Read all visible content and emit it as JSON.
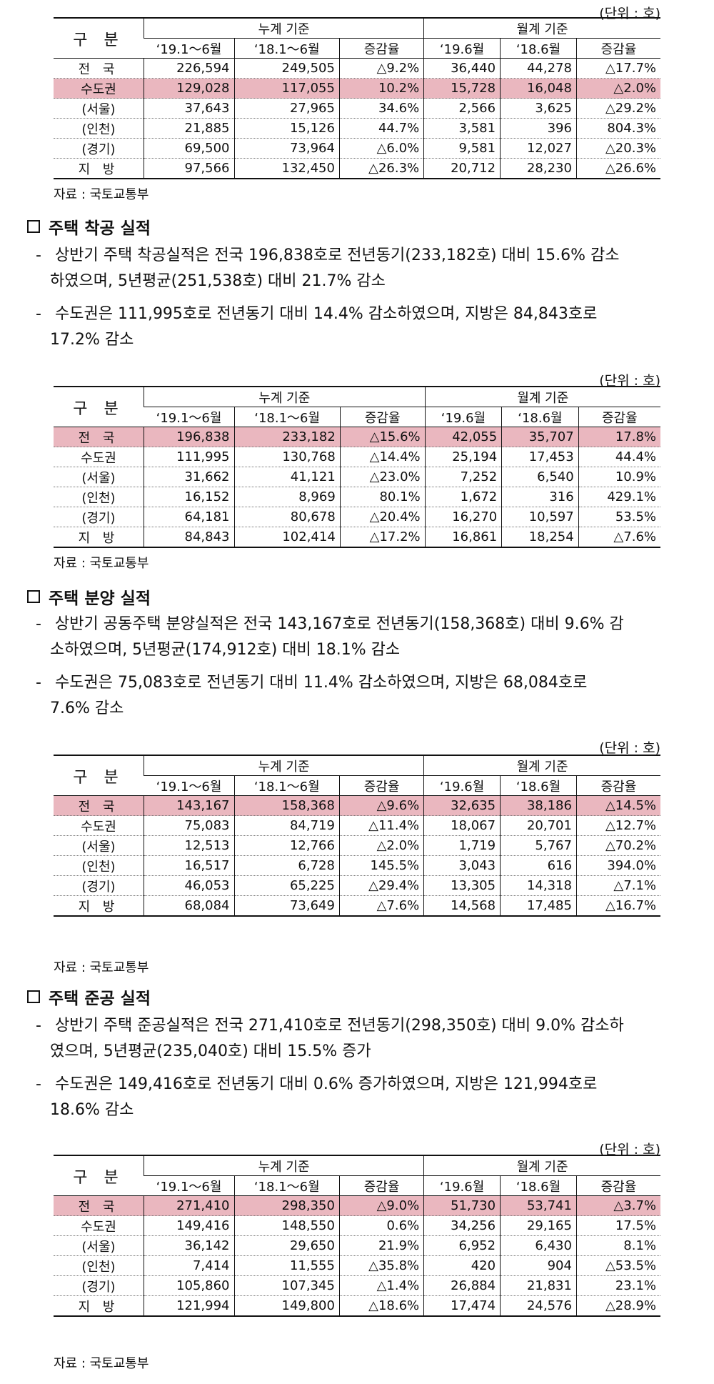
{
  "unit_label": "(단위 : 호)",
  "source_label": "자료 : 국토교통부",
  "header": {
    "gu": "구 분",
    "cum": "누계 기준",
    "mon": "월계 기준",
    "cols": [
      "‘19.1～6월",
      "‘18.1～6월",
      "증감율",
      "‘19.6월",
      "‘18.6월",
      "증감율"
    ]
  },
  "tables": [
    {
      "rows": [
        {
          "label": "전 국",
          "values": [
            "226,594",
            "249,505",
            "△9.2%",
            "36,440",
            "44,278",
            "△17.7%"
          ]
        },
        {
          "label": "수도권",
          "values": [
            "129,028",
            "117,055",
            "10.2%",
            "15,728",
            "16,048",
            "△2.0%"
          ]
        },
        {
          "label": "(서울)",
          "values": [
            "37,643",
            "27,965",
            "34.6%",
            "2,566",
            "3,625",
            "△29.2%"
          ]
        },
        {
          "label": "(인천)",
          "values": [
            "21,885",
            "15,126",
            "44.7%",
            "3,581",
            "396",
            "804.3%"
          ]
        },
        {
          "label": "(경기)",
          "values": [
            "69,500",
            "73,964",
            "△6.0%",
            "9,581",
            "12,027",
            "△20.3%"
          ]
        },
        {
          "label": "지 방",
          "values": [
            "97,566",
            "132,450",
            "△26.3%",
            "20,712",
            "28,230",
            "△26.6%"
          ]
        }
      ]
    },
    {
      "rows": [
        {
          "label": "전 국",
          "values": [
            "196,838",
            "233,182",
            "△15.6%",
            "42,055",
            "35,707",
            "17.8%"
          ]
        },
        {
          "label": "수도권",
          "values": [
            "111,995",
            "130,768",
            "△14.4%",
            "25,194",
            "17,453",
            "44.4%"
          ]
        },
        {
          "label": "(서울)",
          "values": [
            "31,662",
            "41,121",
            "△23.0%",
            "7,252",
            "6,540",
            "10.9%"
          ]
        },
        {
          "label": "(인천)",
          "values": [
            "16,152",
            "8,969",
            "80.1%",
            "1,672",
            "316",
            "429.1%"
          ]
        },
        {
          "label": "(경기)",
          "values": [
            "64,181",
            "80,678",
            "△20.4%",
            "16,270",
            "10,597",
            "53.5%"
          ]
        },
        {
          "label": "지 방",
          "values": [
            "84,843",
            "102,414",
            "△17.2%",
            "16,861",
            "18,254",
            "△7.6%"
          ]
        }
      ]
    },
    {
      "rows": [
        {
          "label": "전 국",
          "values": [
            "143,167",
            "158,368",
            "△9.6%",
            "32,635",
            "38,186",
            "△14.5%"
          ]
        },
        {
          "label": "수도권",
          "values": [
            "75,083",
            "84,719",
            "△11.4%",
            "18,067",
            "20,701",
            "△12.7%"
          ]
        },
        {
          "label": "(서울)",
          "values": [
            "12,513",
            "12,766",
            "△2.0%",
            "1,719",
            "5,767",
            "△70.2%"
          ]
        },
        {
          "label": "(인천)",
          "values": [
            "16,517",
            "6,728",
            "145.5%",
            "3,043",
            "616",
            "394.0%"
          ]
        },
        {
          "label": "(경기)",
          "values": [
            "46,053",
            "65,225",
            "△29.4%",
            "13,305",
            "14,318",
            "△7.1%"
          ]
        },
        {
          "label": "지 방",
          "values": [
            "68,084",
            "73,649",
            "△7.6%",
            "14,568",
            "17,485",
            "△16.7%"
          ]
        }
      ]
    },
    {
      "rows": [
        {
          "label": "전 국",
          "values": [
            "271,410",
            "298,350",
            "△9.0%",
            "51,730",
            "53,741",
            "△3.7%"
          ]
        },
        {
          "label": "수도권",
          "values": [
            "149,416",
            "148,550",
            "0.6%",
            "34,256",
            "29,165",
            "17.5%"
          ]
        },
        {
          "label": "(서울)",
          "values": [
            "36,142",
            "29,650",
            "21.9%",
            "6,952",
            "6,430",
            "8.1%"
          ]
        },
        {
          "label": "(인천)",
          "values": [
            "7,414",
            "11,555",
            "△35.8%",
            "420",
            "904",
            "△53.5%"
          ]
        },
        {
          "label": "(경기)",
          "values": [
            "105,860",
            "107,345",
            "△1.4%",
            "26,884",
            "21,831",
            "23.1%"
          ]
        },
        {
          "label": "지 방",
          "values": [
            "121,994",
            "149,800",
            "△18.6%",
            "17,474",
            "24,576",
            "△28.9%"
          ]
        }
      ]
    }
  ],
  "sections": [
    {
      "title": "주택 착공 실적",
      "paragraphs": [
        {
          "line1": "상반기 주택 착공실적은 전국 196,838호로 전년동기(233,182호) 대비 15.6% 감소",
          "line2": "하였으며, 5년평균(251,538호) 대비 21.7% 감소"
        },
        {
          "line1": "수도권은 111,995호로 전년동기 대비 14.4% 감소하였으며, 지방은 84,843호로",
          "line2": "17.2% 감소"
        }
      ]
    },
    {
      "title": "주택 분양 실적",
      "paragraphs": [
        {
          "line1": "상반기 공동주택 분양실적은 전국 143,167호로 전년동기(158,368호) 대비 9.6% 감",
          "line2": "소하였으며, 5년평균(174,912호) 대비 18.1% 감소"
        },
        {
          "line1": "수도권은 75,083호로 전년동기 대비 11.4% 감소하였으며, 지방은 68,084호로",
          "line2": "7.6% 감소"
        }
      ]
    },
    {
      "title": "주택 준공 실적",
      "paragraphs": [
        {
          "line1": "상반기 주택 준공실적은 전국 271,410호로 전년동기(298,350호) 대비 9.0% 감소하",
          "line2": "였으며, 5년평균(235,040호) 대비 15.5% 증가"
        },
        {
          "line1": "수도권은 149,416호로 전년동기 대비 0.6% 증가하였으며, 지방은 121,994호로",
          "line2": "18.6% 감소"
        }
      ]
    }
  ]
}
